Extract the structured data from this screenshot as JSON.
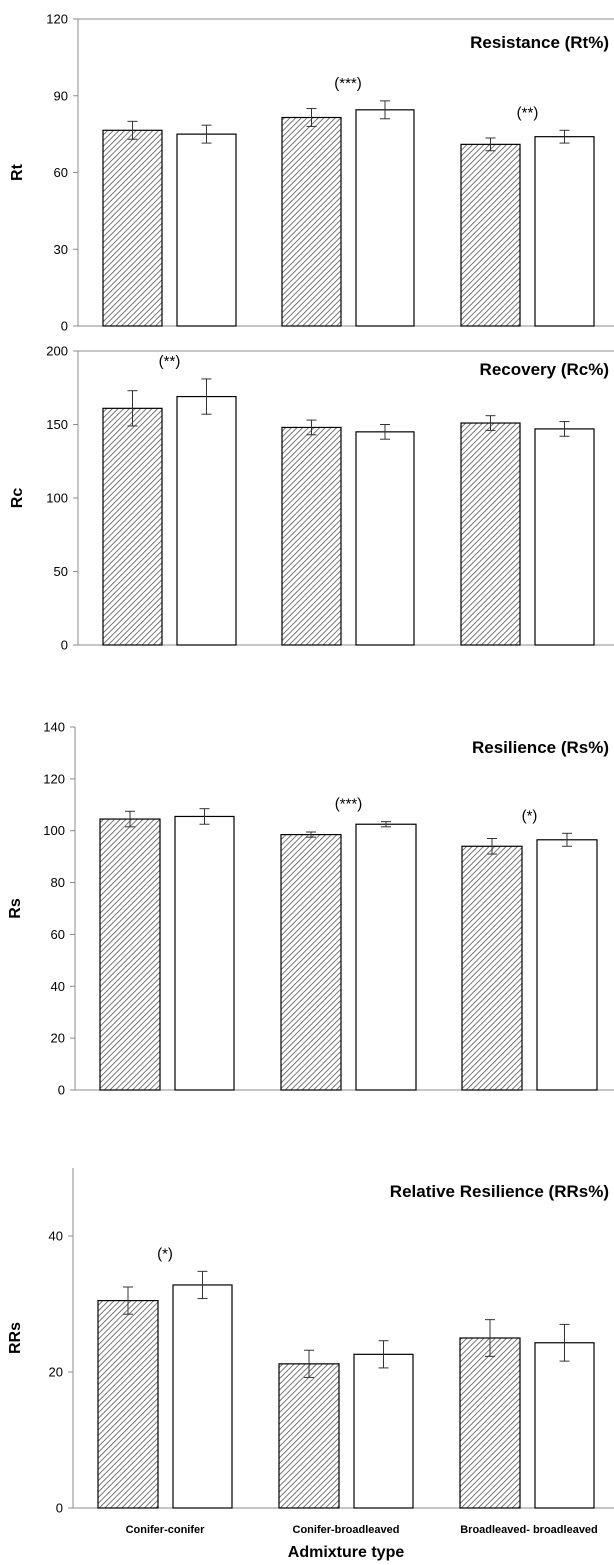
{
  "chart_data": [
    {
      "type": "bar",
      "title": "Resistance (Rt%)",
      "ylabel": "Rt",
      "ylim": [
        0,
        120
      ],
      "yticks": [
        0,
        30,
        60,
        90,
        120
      ],
      "categories": [
        "Conifer-conifer",
        "Conifer-broadleaved",
        "Broadleaved- broadleaved"
      ],
      "series": [
        {
          "fill": "hatched",
          "values": [
            76.5,
            81.5,
            71.0
          ],
          "errors": [
            3.5,
            3.5,
            2.5
          ]
        },
        {
          "fill": "white",
          "values": [
            75.0,
            84.5,
            74.0
          ],
          "errors": [
            3.5,
            3.5,
            2.5
          ]
        }
      ],
      "annotations": [
        "",
        "(***)",
        "(**)"
      ]
    },
    {
      "type": "bar",
      "title": "Recovery (Rc%)",
      "ylabel": "Rc",
      "ylim": [
        0,
        200
      ],
      "yticks": [
        0,
        50,
        100,
        150,
        200
      ],
      "categories": [
        "Conifer-conifer",
        "Conifer-broadleaved",
        "Broadleaved- broadleaved"
      ],
      "series": [
        {
          "fill": "hatched",
          "values": [
            161,
            148,
            151
          ],
          "errors": [
            12,
            5,
            5
          ]
        },
        {
          "fill": "white",
          "values": [
            169,
            145,
            147
          ],
          "errors": [
            12,
            5,
            5
          ]
        }
      ],
      "annotations": [
        "(**)",
        "",
        ""
      ]
    },
    {
      "type": "bar",
      "title": "Resilience (Rs%)",
      "ylabel": "Rs",
      "ylim": [
        0,
        140
      ],
      "yticks": [
        0,
        20,
        40,
        60,
        80,
        100,
        120,
        140
      ],
      "categories": [
        "Conifer-conifer",
        "Conifer-broadleaved",
        "Broadleaved- broadleaved"
      ],
      "series": [
        {
          "fill": "hatched",
          "values": [
            104.5,
            98.5,
            94.0
          ],
          "errors": [
            3.0,
            1.0,
            3.0
          ]
        },
        {
          "fill": "white",
          "values": [
            105.5,
            102.5,
            96.5
          ],
          "errors": [
            3.0,
            1.0,
            2.5
          ]
        }
      ],
      "annotations": [
        "",
        "(***)",
        "(*)"
      ]
    },
    {
      "type": "bar",
      "title": "Relative Resilience (RRs%)",
      "ylabel": "RRs",
      "ylim": [
        0,
        50
      ],
      "yticks": [
        0,
        20,
        40
      ],
      "categories": [
        "Conifer-conifer",
        "Conifer-broadleaved",
        "Broadleaved- broadleaved"
      ],
      "series": [
        {
          "fill": "hatched",
          "values": [
            30.5,
            21.2,
            25.0
          ],
          "errors": [
            2.0,
            2.0,
            2.7
          ]
        },
        {
          "fill": "white",
          "values": [
            32.8,
            22.6,
            24.3
          ],
          "errors": [
            2.0,
            2.0,
            2.7
          ]
        }
      ],
      "annotations": [
        "(*)",
        "",
        ""
      ]
    }
  ],
  "xlabel": "Admixture type"
}
